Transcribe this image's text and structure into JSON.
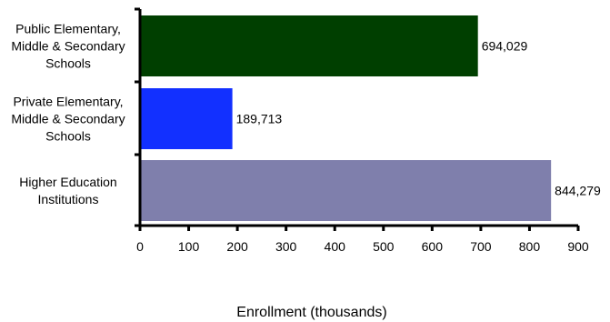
{
  "chart_data": {
    "type": "bar",
    "orientation": "horizontal",
    "categories": [
      [
        "Public Elementary,",
        "Middle & Secondary",
        "Schools"
      ],
      [
        "Private Elementary,",
        "Middle & Secondary",
        "Schools"
      ],
      [
        "Higher Education",
        "Institutions"
      ]
    ],
    "values": [
      694.029,
      189.713,
      844.279
    ],
    "value_labels": [
      "694,029",
      "189,713",
      "844,279"
    ],
    "colors": [
      "#003f00",
      "#1230ff",
      "#7f7fac"
    ],
    "xlabel": "Enrollment (thousands)",
    "xlim": [
      0,
      900
    ],
    "xticks": [
      0,
      100,
      200,
      300,
      400,
      500,
      600,
      700,
      800,
      900
    ],
    "grid": false
  }
}
